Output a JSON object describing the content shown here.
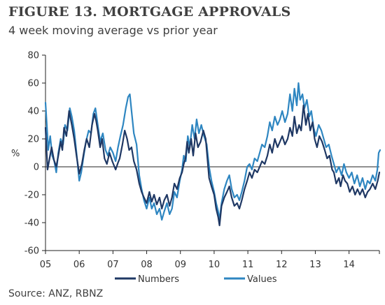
{
  "title": "FIGURE 13. MORTGAGE APPROVALS",
  "subtitle": "4 week moving average vs prior year",
  "source": "Source: ANZ, RBNZ",
  "chart_data": {
    "type": "line",
    "title": "FIGURE 13. MORTGAGE APPROVALS",
    "subtitle": "4 week moving average vs prior year",
    "xlabel": "",
    "ylabel": "%",
    "ylim": [
      -60,
      80
    ],
    "yticks": [
      80,
      60,
      40,
      20,
      0,
      -20,
      -40,
      -60
    ],
    "xlim": [
      2005.0,
      2014.9
    ],
    "xticks": [
      {
        "pos": 2005.0,
        "label": "05"
      },
      {
        "pos": 2006.0,
        "label": "06"
      },
      {
        "pos": 2007.0,
        "label": "07"
      },
      {
        "pos": 2008.0,
        "label": "08"
      },
      {
        "pos": 2009.0,
        "label": "09"
      },
      {
        "pos": 2010.0,
        "label": "10"
      },
      {
        "pos": 2011.0,
        "label": "11"
      },
      {
        "pos": 2012.0,
        "label": "12"
      },
      {
        "pos": 2013.0,
        "label": "13"
      },
      {
        "pos": 2014.0,
        "label": "14"
      }
    ],
    "grid": false,
    "legend": "bottom-center",
    "series": [
      {
        "name": "Numbers",
        "color": "#1f3864",
        "points": [
          [
            2005.0,
            28
          ],
          [
            2005.06,
            -2
          ],
          [
            2005.12,
            6
          ],
          [
            2005.18,
            14
          ],
          [
            2005.25,
            5
          ],
          [
            2005.32,
            0
          ],
          [
            2005.38,
            8
          ],
          [
            2005.45,
            18
          ],
          [
            2005.5,
            12
          ],
          [
            2005.55,
            28
          ],
          [
            2005.62,
            22
          ],
          [
            2005.7,
            40
          ],
          [
            2005.78,
            30
          ],
          [
            2005.85,
            20
          ],
          [
            2005.92,
            8
          ],
          [
            2006.0,
            -5
          ],
          [
            2006.08,
            2
          ],
          [
            2006.15,
            12
          ],
          [
            2006.22,
            20
          ],
          [
            2006.3,
            14
          ],
          [
            2006.38,
            30
          ],
          [
            2006.45,
            38
          ],
          [
            2006.5,
            33
          ],
          [
            2006.55,
            26
          ],
          [
            2006.62,
            14
          ],
          [
            2006.68,
            20
          ],
          [
            2006.75,
            6
          ],
          [
            2006.82,
            2
          ],
          [
            2006.9,
            10
          ],
          [
            2006.98,
            4
          ],
          [
            2007.08,
            -2
          ],
          [
            2007.15,
            3
          ],
          [
            2007.2,
            6
          ],
          [
            2007.28,
            16
          ],
          [
            2007.35,
            26
          ],
          [
            2007.42,
            20
          ],
          [
            2007.48,
            12
          ],
          [
            2007.55,
            14
          ],
          [
            2007.62,
            4
          ],
          [
            2007.7,
            -2
          ],
          [
            2007.78,
            -12
          ],
          [
            2007.85,
            -18
          ],
          [
            2007.92,
            -22
          ],
          [
            2008.0,
            -26
          ],
          [
            2008.08,
            -18
          ],
          [
            2008.15,
            -25
          ],
          [
            2008.22,
            -20
          ],
          [
            2008.3,
            -27
          ],
          [
            2008.38,
            -22
          ],
          [
            2008.45,
            -30
          ],
          [
            2008.52,
            -24
          ],
          [
            2008.6,
            -20
          ],
          [
            2008.68,
            -28
          ],
          [
            2008.75,
            -22
          ],
          [
            2008.82,
            -12
          ],
          [
            2008.9,
            -16
          ],
          [
            2008.98,
            -8
          ],
          [
            2009.05,
            -4
          ],
          [
            2009.1,
            2
          ],
          [
            2009.15,
            6
          ],
          [
            2009.2,
            18
          ],
          [
            2009.25,
            10
          ],
          [
            2009.32,
            20
          ],
          [
            2009.38,
            8
          ],
          [
            2009.45,
            24
          ],
          [
            2009.52,
            14
          ],
          [
            2009.6,
            18
          ],
          [
            2009.68,
            26
          ],
          [
            2009.75,
            20
          ],
          [
            2009.8,
            6
          ],
          [
            2009.85,
            -8
          ],
          [
            2009.92,
            -14
          ],
          [
            2010.0,
            -20
          ],
          [
            2010.06,
            -30
          ],
          [
            2010.12,
            -36
          ],
          [
            2010.16,
            -42
          ],
          [
            2010.22,
            -28
          ],
          [
            2010.3,
            -22
          ],
          [
            2010.38,
            -18
          ],
          [
            2010.45,
            -14
          ],
          [
            2010.52,
            -22
          ],
          [
            2010.6,
            -28
          ],
          [
            2010.68,
            -26
          ],
          [
            2010.75,
            -30
          ],
          [
            2010.82,
            -24
          ],
          [
            2010.9,
            -16
          ],
          [
            2010.98,
            -10
          ],
          [
            2011.05,
            -4
          ],
          [
            2011.12,
            -8
          ],
          [
            2011.2,
            -2
          ],
          [
            2011.28,
            -4
          ],
          [
            2011.35,
            0
          ],
          [
            2011.42,
            4
          ],
          [
            2011.5,
            2
          ],
          [
            2011.58,
            8
          ],
          [
            2011.65,
            16
          ],
          [
            2011.72,
            10
          ],
          [
            2011.8,
            20
          ],
          [
            2011.88,
            14
          ],
          [
            2011.95,
            18
          ],
          [
            2012.02,
            22
          ],
          [
            2012.1,
            16
          ],
          [
            2012.18,
            20
          ],
          [
            2012.25,
            28
          ],
          [
            2012.32,
            22
          ],
          [
            2012.38,
            36
          ],
          [
            2012.45,
            24
          ],
          [
            2012.52,
            30
          ],
          [
            2012.58,
            26
          ],
          [
            2012.65,
            44
          ],
          [
            2012.72,
            30
          ],
          [
            2012.78,
            38
          ],
          [
            2012.85,
            26
          ],
          [
            2012.92,
            32
          ],
          [
            2012.98,
            20
          ],
          [
            2013.05,
            14
          ],
          [
            2013.12,
            22
          ],
          [
            2013.2,
            18
          ],
          [
            2013.28,
            12
          ],
          [
            2013.35,
            6
          ],
          [
            2013.42,
            8
          ],
          [
            2013.5,
            -2
          ],
          [
            2013.55,
            -4
          ],
          [
            2013.62,
            -12
          ],
          [
            2013.7,
            -8
          ],
          [
            2013.75,
            -14
          ],
          [
            2013.82,
            -6
          ],
          [
            2013.88,
            -10
          ],
          [
            2013.95,
            -12
          ],
          [
            2014.02,
            -18
          ],
          [
            2014.1,
            -14
          ],
          [
            2014.18,
            -20
          ],
          [
            2014.25,
            -16
          ],
          [
            2014.32,
            -20
          ],
          [
            2014.4,
            -16
          ],
          [
            2014.48,
            -22
          ],
          [
            2014.55,
            -18
          ],
          [
            2014.62,
            -16
          ],
          [
            2014.7,
            -12
          ],
          [
            2014.78,
            -16
          ],
          [
            2014.85,
            -10
          ],
          [
            2014.9,
            -4
          ]
        ]
      },
      {
        "name": "Values",
        "color": "#2e86c1",
        "points": [
          [
            2005.0,
            46
          ],
          [
            2005.04,
            30
          ],
          [
            2005.08,
            12
          ],
          [
            2005.14,
            22
          ],
          [
            2005.2,
            8
          ],
          [
            2005.26,
            4
          ],
          [
            2005.32,
            -4
          ],
          [
            2005.38,
            10
          ],
          [
            2005.45,
            20
          ],
          [
            2005.52,
            16
          ],
          [
            2005.58,
            30
          ],
          [
            2005.65,
            26
          ],
          [
            2005.72,
            42
          ],
          [
            2005.78,
            36
          ],
          [
            2005.85,
            26
          ],
          [
            2005.92,
            10
          ],
          [
            2006.0,
            -10
          ],
          [
            2006.06,
            -4
          ],
          [
            2006.12,
            6
          ],
          [
            2006.2,
            18
          ],
          [
            2006.28,
            26
          ],
          [
            2006.35,
            24
          ],
          [
            2006.42,
            38
          ],
          [
            2006.48,
            42
          ],
          [
            2006.55,
            30
          ],
          [
            2006.62,
            18
          ],
          [
            2006.7,
            24
          ],
          [
            2006.78,
            12
          ],
          [
            2006.85,
            8
          ],
          [
            2006.92,
            14
          ],
          [
            2007.0,
            10
          ],
          [
            2007.08,
            4
          ],
          [
            2007.15,
            14
          ],
          [
            2007.22,
            22
          ],
          [
            2007.3,
            30
          ],
          [
            2007.38,
            42
          ],
          [
            2007.45,
            50
          ],
          [
            2007.5,
            52
          ],
          [
            2007.55,
            40
          ],
          [
            2007.62,
            24
          ],
          [
            2007.7,
            16
          ],
          [
            2007.78,
            -6
          ],
          [
            2007.85,
            -16
          ],
          [
            2007.92,
            -24
          ],
          [
            2008.0,
            -30
          ],
          [
            2008.08,
            -22
          ],
          [
            2008.15,
            -30
          ],
          [
            2008.22,
            -26
          ],
          [
            2008.3,
            -34
          ],
          [
            2008.38,
            -30
          ],
          [
            2008.45,
            -38
          ],
          [
            2008.52,
            -32
          ],
          [
            2008.6,
            -26
          ],
          [
            2008.68,
            -34
          ],
          [
            2008.75,
            -30
          ],
          [
            2008.82,
            -18
          ],
          [
            2008.9,
            -22
          ],
          [
            2008.98,
            -10
          ],
          [
            2009.05,
            -2
          ],
          [
            2009.1,
            8
          ],
          [
            2009.16,
            4
          ],
          [
            2009.22,
            22
          ],
          [
            2009.28,
            14
          ],
          [
            2009.35,
            30
          ],
          [
            2009.42,
            20
          ],
          [
            2009.48,
            34
          ],
          [
            2009.55,
            24
          ],
          [
            2009.62,
            30
          ],
          [
            2009.7,
            22
          ],
          [
            2009.78,
            16
          ],
          [
            2009.85,
            0
          ],
          [
            2009.92,
            -10
          ],
          [
            2010.0,
            -18
          ],
          [
            2010.06,
            -26
          ],
          [
            2010.12,
            -32
          ],
          [
            2010.16,
            -38
          ],
          [
            2010.22,
            -26
          ],
          [
            2010.3,
            -16
          ],
          [
            2010.38,
            -10
          ],
          [
            2010.45,
            -6
          ],
          [
            2010.52,
            -16
          ],
          [
            2010.6,
            -22
          ],
          [
            2010.68,
            -20
          ],
          [
            2010.75,
            -24
          ],
          [
            2010.82,
            -18
          ],
          [
            2010.9,
            -10
          ],
          [
            2010.98,
            0
          ],
          [
            2011.05,
            2
          ],
          [
            2011.12,
            -2
          ],
          [
            2011.2,
            6
          ],
          [
            2011.28,
            4
          ],
          [
            2011.35,
            10
          ],
          [
            2011.42,
            16
          ],
          [
            2011.5,
            14
          ],
          [
            2011.58,
            22
          ],
          [
            2011.65,
            32
          ],
          [
            2011.72,
            26
          ],
          [
            2011.8,
            36
          ],
          [
            2011.88,
            30
          ],
          [
            2011.95,
            34
          ],
          [
            2012.02,
            40
          ],
          [
            2012.1,
            32
          ],
          [
            2012.18,
            38
          ],
          [
            2012.25,
            52
          ],
          [
            2012.32,
            40
          ],
          [
            2012.38,
            56
          ],
          [
            2012.45,
            44
          ],
          [
            2012.5,
            60
          ],
          [
            2012.55,
            48
          ],
          [
            2012.62,
            52
          ],
          [
            2012.68,
            42
          ],
          [
            2012.75,
            48
          ],
          [
            2012.82,
            36
          ],
          [
            2012.88,
            40
          ],
          [
            2012.95,
            28
          ],
          [
            2013.02,
            22
          ],
          [
            2013.1,
            30
          ],
          [
            2013.18,
            26
          ],
          [
            2013.25,
            20
          ],
          [
            2013.32,
            14
          ],
          [
            2013.4,
            16
          ],
          [
            2013.48,
            8
          ],
          [
            2013.55,
            2
          ],
          [
            2013.62,
            -4
          ],
          [
            2013.7,
            0
          ],
          [
            2013.78,
            -6
          ],
          [
            2013.85,
            2
          ],
          [
            2013.92,
            -4
          ],
          [
            2014.0,
            -8
          ],
          [
            2014.08,
            -4
          ],
          [
            2014.16,
            -12
          ],
          [
            2014.24,
            -6
          ],
          [
            2014.32,
            -14
          ],
          [
            2014.4,
            -8
          ],
          [
            2014.48,
            -16
          ],
          [
            2014.55,
            -10
          ],
          [
            2014.62,
            -12
          ],
          [
            2014.7,
            -6
          ],
          [
            2014.78,
            -10
          ],
          [
            2014.84,
            -2
          ],
          [
            2014.88,
            10
          ],
          [
            2014.92,
            12
          ]
        ]
      }
    ]
  }
}
